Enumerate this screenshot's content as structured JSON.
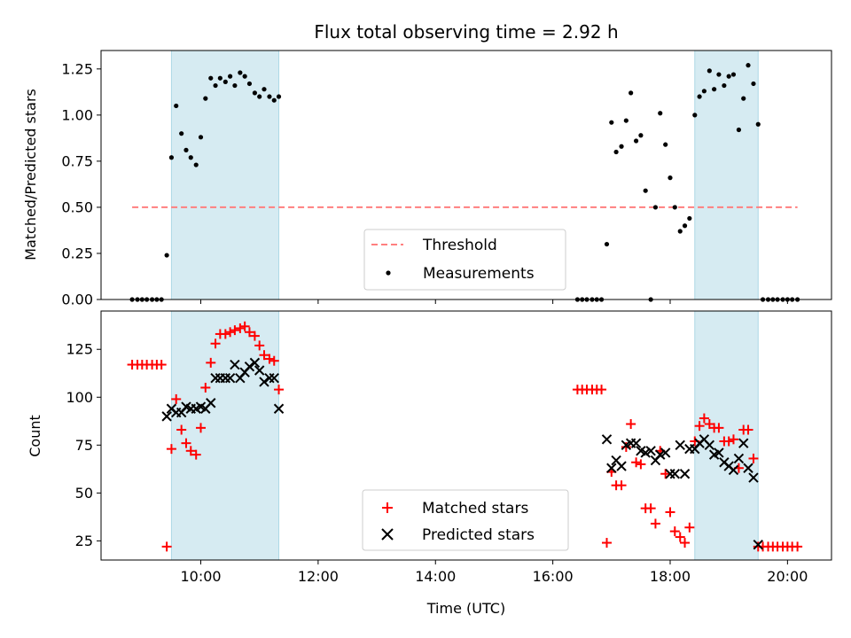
{
  "chart_data": [
    {
      "type": "scatter",
      "title": "Flux total observing time = 2.92 h",
      "ylabel": "Matched/Predicted stars",
      "ylim": [
        0,
        1.35
      ],
      "xlim": [
        8.3,
        20.75
      ],
      "yticks": [
        "0.00",
        "0.25",
        "0.50",
        "0.75",
        "1.00",
        "1.25"
      ],
      "shaded_regions": [
        [
          9.5,
          11.33
        ],
        [
          18.42,
          19.5
        ]
      ],
      "legend": {
        "placement": "bottom-center",
        "entries": [
          "Threshold",
          "Measurements"
        ]
      },
      "threshold": {
        "name": "Threshold",
        "value": 0.5,
        "x_range": [
          8.83,
          20.17
        ],
        "color": "#ff7f7f"
      },
      "series": [
        {
          "name": "Measurements",
          "color": "#000000",
          "points": [
            [
              8.83,
              0
            ],
            [
              8.92,
              0
            ],
            [
              9.0,
              0
            ],
            [
              9.08,
              0
            ],
            [
              9.17,
              0
            ],
            [
              9.25,
              0
            ],
            [
              9.33,
              0
            ],
            [
              9.42,
              0.24
            ],
            [
              9.5,
              0.77
            ],
            [
              9.58,
              1.05
            ],
            [
              9.67,
              0.9
            ],
            [
              9.75,
              0.81
            ],
            [
              9.83,
              0.77
            ],
            [
              9.92,
              0.73
            ],
            [
              10.0,
              0.88
            ],
            [
              10.08,
              1.09
            ],
            [
              10.17,
              1.2
            ],
            [
              10.25,
              1.16
            ],
            [
              10.33,
              1.2
            ],
            [
              10.42,
              1.18
            ],
            [
              10.5,
              1.21
            ],
            [
              10.58,
              1.16
            ],
            [
              10.67,
              1.23
            ],
            [
              10.75,
              1.21
            ],
            [
              10.83,
              1.17
            ],
            [
              10.92,
              1.12
            ],
            [
              11.0,
              1.1
            ],
            [
              11.08,
              1.14
            ],
            [
              11.17,
              1.1
            ],
            [
              11.25,
              1.08
            ],
            [
              11.33,
              1.1
            ],
            [
              16.42,
              0
            ],
            [
              16.5,
              0
            ],
            [
              16.58,
              0
            ],
            [
              16.67,
              0
            ],
            [
              16.75,
              0
            ],
            [
              16.83,
              0
            ],
            [
              16.92,
              0.3
            ],
            [
              17.0,
              0.96
            ],
            [
              17.08,
              0.8
            ],
            [
              17.17,
              0.83
            ],
            [
              17.25,
              0.97
            ],
            [
              17.33,
              1.12
            ],
            [
              17.42,
              0.86
            ],
            [
              17.5,
              0.89
            ],
            [
              17.58,
              0.59
            ],
            [
              17.67,
              0
            ],
            [
              17.75,
              0.5
            ],
            [
              17.83,
              1.01
            ],
            [
              17.92,
              0.84
            ],
            [
              18.0,
              0.66
            ],
            [
              18.08,
              0.5
            ],
            [
              18.17,
              0.37
            ],
            [
              18.25,
              0.4
            ],
            [
              18.33,
              0.44
            ],
            [
              18.42,
              1.0
            ],
            [
              18.5,
              1.1
            ],
            [
              18.58,
              1.13
            ],
            [
              18.67,
              1.24
            ],
            [
              18.75,
              1.14
            ],
            [
              18.83,
              1.22
            ],
            [
              18.92,
              1.16
            ],
            [
              19.0,
              1.21
            ],
            [
              19.08,
              1.22
            ],
            [
              19.17,
              0.92
            ],
            [
              19.25,
              1.09
            ],
            [
              19.33,
              1.27
            ],
            [
              19.42,
              1.17
            ],
            [
              19.5,
              0.95
            ],
            [
              19.58,
              0
            ],
            [
              19.67,
              0
            ],
            [
              19.75,
              0
            ],
            [
              19.83,
              0
            ],
            [
              19.92,
              0
            ],
            [
              20.0,
              0
            ],
            [
              20.08,
              0
            ],
            [
              20.17,
              0
            ]
          ]
        }
      ]
    },
    {
      "type": "scatter",
      "xlabel": "Time (UTC)",
      "ylabel": "Count",
      "ylim": [
        15,
        145
      ],
      "xlim": [
        8.3,
        20.75
      ],
      "yticks": [
        "25",
        "50",
        "75",
        "100",
        "125"
      ],
      "xticks": [
        {
          "value": 10,
          "label": "10:00"
        },
        {
          "value": 12,
          "label": "12:00"
        },
        {
          "value": 14,
          "label": "14:00"
        },
        {
          "value": 16,
          "label": "16:00"
        },
        {
          "value": 18,
          "label": "18:00"
        },
        {
          "value": 20,
          "label": "20:00"
        }
      ],
      "shaded_regions": [
        [
          9.5,
          11.33
        ],
        [
          18.42,
          19.5
        ]
      ],
      "legend": {
        "placement": "bottom-center",
        "entries": [
          "Matched stars",
          "Predicted stars"
        ]
      },
      "series": [
        {
          "name": "Matched stars",
          "color": "#ff0000",
          "marker": "plus",
          "points": [
            [
              8.83,
              117
            ],
            [
              8.92,
              117
            ],
            [
              9.0,
              117
            ],
            [
              9.08,
              117
            ],
            [
              9.17,
              117
            ],
            [
              9.25,
              117
            ],
            [
              9.33,
              117
            ],
            [
              9.42,
              22
            ],
            [
              9.5,
              73
            ],
            [
              9.58,
              99
            ],
            [
              9.67,
              83
            ],
            [
              9.75,
              76
            ],
            [
              9.83,
              72
            ],
            [
              9.92,
              70
            ],
            [
              10.0,
              84
            ],
            [
              10.08,
              105
            ],
            [
              10.17,
              118
            ],
            [
              10.25,
              128
            ],
            [
              10.33,
              133
            ],
            [
              10.42,
              133
            ],
            [
              10.5,
              134
            ],
            [
              10.58,
              135
            ],
            [
              10.67,
              136
            ],
            [
              10.75,
              137
            ],
            [
              10.83,
              134
            ],
            [
              10.92,
              132
            ],
            [
              11.0,
              127
            ],
            [
              11.08,
              122
            ],
            [
              11.17,
              120
            ],
            [
              11.25,
              119
            ],
            [
              11.33,
              104
            ],
            [
              16.42,
              104
            ],
            [
              16.5,
              104
            ],
            [
              16.58,
              104
            ],
            [
              16.67,
              104
            ],
            [
              16.75,
              104
            ],
            [
              16.83,
              104
            ],
            [
              16.92,
              24
            ],
            [
              17.0,
              61
            ],
            [
              17.08,
              54
            ],
            [
              17.17,
              54
            ],
            [
              17.25,
              74
            ],
            [
              17.33,
              86
            ],
            [
              17.42,
              66
            ],
            [
              17.5,
              65
            ],
            [
              17.58,
              42
            ],
            [
              17.67,
              42
            ],
            [
              17.75,
              34
            ],
            [
              17.83,
              72
            ],
            [
              17.92,
              60
            ],
            [
              18.0,
              40
            ],
            [
              18.08,
              30
            ],
            [
              18.17,
              27
            ],
            [
              18.25,
              24
            ],
            [
              18.33,
              32
            ],
            [
              18.42,
              77
            ],
            [
              18.5,
              85
            ],
            [
              18.58,
              89
            ],
            [
              18.67,
              86
            ],
            [
              18.75,
              84
            ],
            [
              18.83,
              84
            ],
            [
              18.92,
              77
            ],
            [
              19.0,
              77
            ],
            [
              19.08,
              78
            ],
            [
              19.17,
              63
            ],
            [
              19.25,
              83
            ],
            [
              19.33,
              83
            ],
            [
              19.42,
              68
            ],
            [
              19.5,
              22
            ],
            [
              19.58,
              22
            ],
            [
              19.67,
              22
            ],
            [
              19.75,
              22
            ],
            [
              19.83,
              22
            ],
            [
              19.92,
              22
            ],
            [
              20.0,
              22
            ],
            [
              20.08,
              22
            ],
            [
              20.17,
              22
            ]
          ]
        },
        {
          "name": "Predicted stars",
          "color": "#000000",
          "marker": "x",
          "points": [
            [
              9.42,
              90
            ],
            [
              9.5,
              94
            ],
            [
              9.58,
              92
            ],
            [
              9.67,
              92
            ],
            [
              9.75,
              95
            ],
            [
              9.83,
              94
            ],
            [
              9.92,
              94
            ],
            [
              10.0,
              95
            ],
            [
              10.08,
              94
            ],
            [
              10.17,
              97
            ],
            [
              10.25,
              110
            ],
            [
              10.33,
              110
            ],
            [
              10.42,
              110
            ],
            [
              10.5,
              110
            ],
            [
              10.58,
              117
            ],
            [
              10.67,
              110
            ],
            [
              10.75,
              113
            ],
            [
              10.83,
              116
            ],
            [
              10.92,
              118
            ],
            [
              11.0,
              114
            ],
            [
              11.08,
              108
            ],
            [
              11.17,
              110
            ],
            [
              11.25,
              110
            ],
            [
              11.33,
              94
            ],
            [
              16.92,
              78
            ],
            [
              17.0,
              63
            ],
            [
              17.08,
              67
            ],
            [
              17.17,
              64
            ],
            [
              17.25,
              75
            ],
            [
              17.33,
              76
            ],
            [
              17.42,
              76
            ],
            [
              17.5,
              72
            ],
            [
              17.58,
              71
            ],
            [
              17.67,
              72
            ],
            [
              17.75,
              67
            ],
            [
              17.83,
              70
            ],
            [
              17.92,
              71
            ],
            [
              18.0,
              60
            ],
            [
              18.08,
              60
            ],
            [
              18.17,
              75
            ],
            [
              18.25,
              60
            ],
            [
              18.33,
              73
            ],
            [
              18.42,
              73
            ],
            [
              18.5,
              76
            ],
            [
              18.58,
              78
            ],
            [
              18.67,
              75
            ],
            [
              18.75,
              70
            ],
            [
              18.83,
              71
            ],
            [
              18.92,
              66
            ],
            [
              19.0,
              64
            ],
            [
              19.08,
              62
            ],
            [
              19.17,
              68
            ],
            [
              19.25,
              76
            ],
            [
              19.33,
              63
            ],
            [
              19.42,
              58
            ],
            [
              19.5,
              23
            ]
          ]
        }
      ]
    }
  ]
}
